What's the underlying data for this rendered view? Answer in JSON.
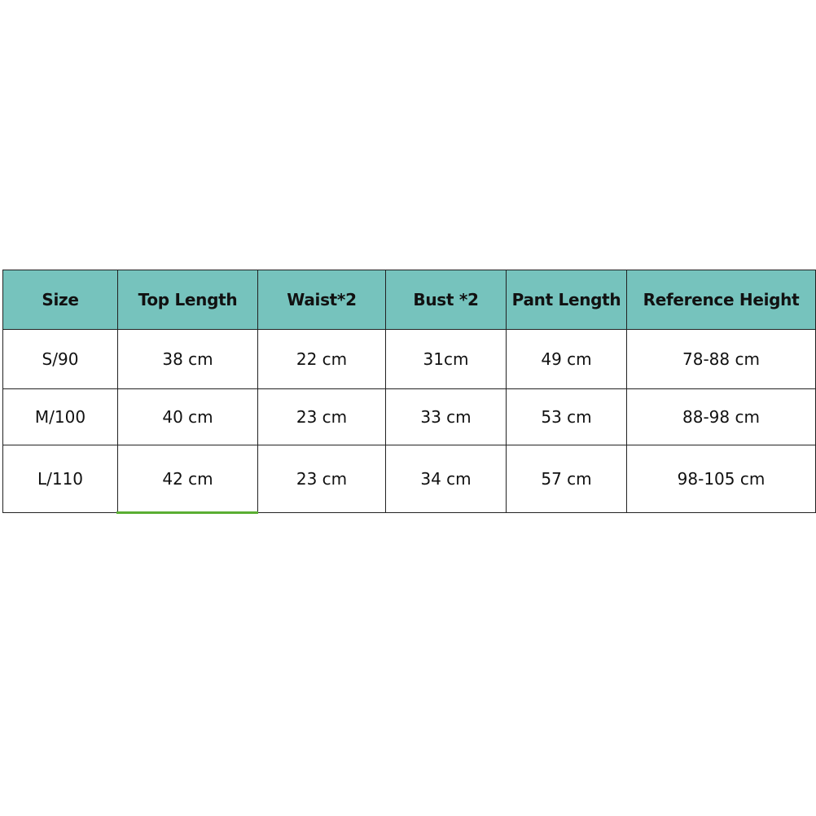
{
  "table": {
    "headers": [
      "Size",
      "Top Length",
      "Waist*2",
      "Bust *2",
      "Pant Length",
      "Reference Height"
    ],
    "rows": [
      [
        "S/90",
        "38 cm",
        "22 cm",
        "31cm",
        "49 cm",
        "78-88 cm"
      ],
      [
        "M/100",
        "40 cm",
        "23 cm",
        "33 cm",
        "53 cm",
        "88-98 cm"
      ],
      [
        "L/110",
        "42 cm",
        "23 cm",
        "34 cm",
        "57 cm",
        "98-105 cm"
      ]
    ]
  },
  "colors": {
    "header_bg": "#76c3bd",
    "accent_underline": "#5aae32"
  }
}
